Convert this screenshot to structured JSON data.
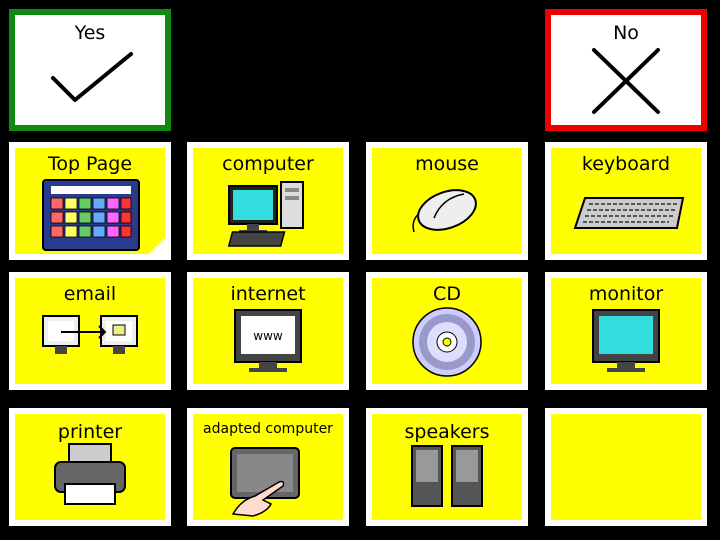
{
  "colors": {
    "background": "#000000",
    "tile_fill": "#ffff00",
    "tile_border": "#ffffff",
    "yes_border": "#118811",
    "no_border": "#ee0000"
  },
  "yes": {
    "label": "Yes",
    "icon": "check-icon"
  },
  "no": {
    "label": "No",
    "icon": "cross-icon"
  },
  "tiles": [
    {
      "label": "Top Page",
      "icon": "grid-board-icon"
    },
    {
      "label": "computer",
      "icon": "desktop-computer-icon"
    },
    {
      "label": "mouse",
      "icon": "mouse-icon"
    },
    {
      "label": "keyboard",
      "icon": "keyboard-icon"
    },
    {
      "label": "email",
      "icon": "email-icon"
    },
    {
      "label": "internet",
      "icon": "internet-monitor-icon"
    },
    {
      "label": "CD",
      "icon": "cd-icon"
    },
    {
      "label": "monitor",
      "icon": "monitor-icon"
    },
    {
      "label": "printer",
      "icon": "printer-icon"
    },
    {
      "label": "adapted computer",
      "icon": "touchscreen-icon"
    },
    {
      "label": "speakers",
      "icon": "speakers-icon"
    },
    {
      "label": "",
      "icon": ""
    }
  ]
}
